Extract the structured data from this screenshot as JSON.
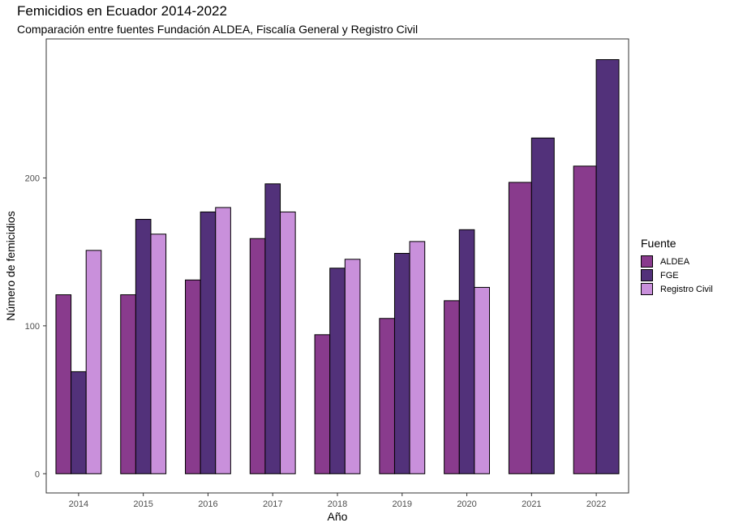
{
  "chart_data": {
    "type": "bar",
    "title": "Femicidios en Ecuador 2014-2022",
    "subtitle": "Comparación entre fuentes Fundación ALDEA, Fiscalía General y Registro Civil",
    "xlabel": "Año",
    "ylabel": "Número de femicidios",
    "categories": [
      "2014",
      "2015",
      "2016",
      "2017",
      "2018",
      "2019",
      "2020",
      "2021",
      "2022"
    ],
    "ylim": [
      -13,
      294
    ],
    "yticks": [
      0,
      100,
      200
    ],
    "grid": false,
    "legend_title": "Fuente",
    "legend_position": "right",
    "series": [
      {
        "name": "ALDEA",
        "color": "#893B8D",
        "values": [
          121,
          121,
          131,
          159,
          94,
          105,
          117,
          197,
          208
        ]
      },
      {
        "name": "FGE",
        "color": "#52317A",
        "values": [
          69,
          172,
          177,
          196,
          139,
          149,
          165,
          227,
          280
        ]
      },
      {
        "name": "Registro Civil",
        "color": "#C990DB",
        "values": [
          151,
          162,
          180,
          177,
          145,
          157,
          126,
          null,
          null
        ]
      }
    ]
  }
}
